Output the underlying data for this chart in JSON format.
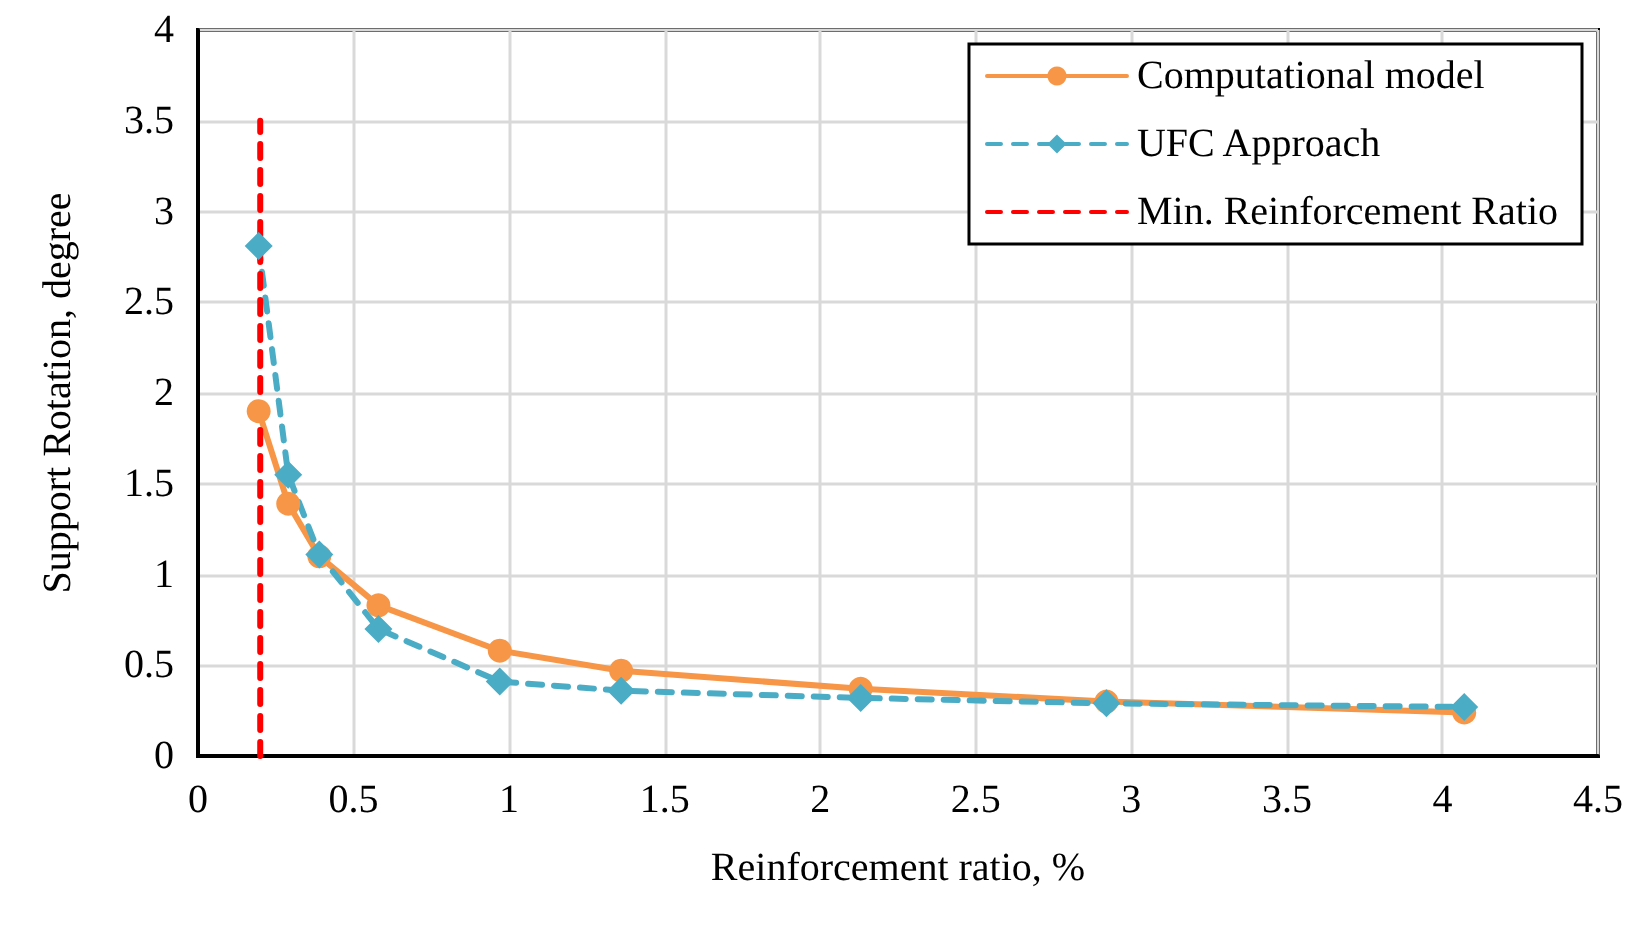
{
  "chart_data": {
    "type": "line",
    "xlabel": "Reinforcement ratio, %",
    "ylabel": "Support Rotation, degree",
    "xlim": [
      0,
      4.5
    ],
    "xticks": [
      0,
      0.5,
      1,
      1.5,
      2,
      2.5,
      3,
      3.5,
      4,
      4.5
    ],
    "ylim": [
      0,
      4
    ],
    "yticks": [
      0,
      0.5,
      1,
      1.5,
      2,
      2.5,
      3,
      3.5,
      4
    ],
    "grid": true,
    "legend": "top right",
    "series": [
      {
        "name": "Computational model",
        "color": "#f79646",
        "marker": "circle",
        "line_style": "solid",
        "x": [
          0.195,
          0.29,
          0.39,
          0.58,
          0.97,
          1.36,
          2.13,
          2.92,
          4.07
        ],
        "values": [
          1.9,
          1.39,
          1.1,
          0.83,
          0.58,
          0.47,
          0.37,
          0.3,
          0.24
        ]
      },
      {
        "name": "UFC Approach",
        "color": "#4bacc6",
        "marker": "diamond",
        "line_style": "dashed",
        "x": [
          0.195,
          0.29,
          0.39,
          0.58,
          0.97,
          1.36,
          2.13,
          2.92,
          4.07
        ],
        "values": [
          2.81,
          1.55,
          1.11,
          0.7,
          0.41,
          0.36,
          0.32,
          0.29,
          0.27
        ]
      },
      {
        "name": "Min. Reinforcement Ratio",
        "color": "#ff0000",
        "marker": "none",
        "line_style": "dashed",
        "x": [
          0.2,
          0.2
        ],
        "values": [
          0,
          3.5
        ]
      }
    ]
  }
}
